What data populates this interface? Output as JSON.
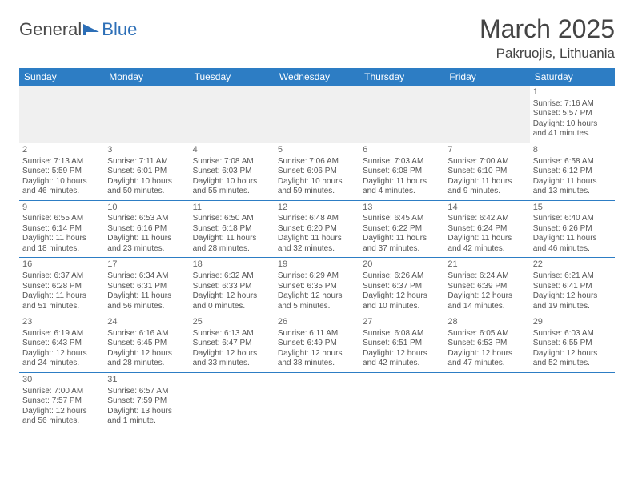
{
  "logo": {
    "text1": "General",
    "text2": "Blue"
  },
  "title": "March 2025",
  "location": "Pakruojis, Lithuania",
  "colors": {
    "header_bg": "#2d7dc4",
    "header_text": "#ffffff",
    "rule": "#2d7dc4",
    "text": "#555555",
    "logo_blue": "#2d6fb7"
  },
  "typography": {
    "title_fontsize": 32,
    "location_fontsize": 17,
    "dayheader_fontsize": 12,
    "cell_fontsize": 10
  },
  "day_headers": [
    "Sunday",
    "Monday",
    "Tuesday",
    "Wednesday",
    "Thursday",
    "Friday",
    "Saturday"
  ],
  "weeks": [
    [
      null,
      null,
      null,
      null,
      null,
      null,
      {
        "n": "1",
        "sunrise": "Sunrise: 7:16 AM",
        "sunset": "Sunset: 5:57 PM",
        "daylight": "Daylight: 10 hours and 41 minutes."
      }
    ],
    [
      {
        "n": "2",
        "sunrise": "Sunrise: 7:13 AM",
        "sunset": "Sunset: 5:59 PM",
        "daylight": "Daylight: 10 hours and 46 minutes."
      },
      {
        "n": "3",
        "sunrise": "Sunrise: 7:11 AM",
        "sunset": "Sunset: 6:01 PM",
        "daylight": "Daylight: 10 hours and 50 minutes."
      },
      {
        "n": "4",
        "sunrise": "Sunrise: 7:08 AM",
        "sunset": "Sunset: 6:03 PM",
        "daylight": "Daylight: 10 hours and 55 minutes."
      },
      {
        "n": "5",
        "sunrise": "Sunrise: 7:06 AM",
        "sunset": "Sunset: 6:06 PM",
        "daylight": "Daylight: 10 hours and 59 minutes."
      },
      {
        "n": "6",
        "sunrise": "Sunrise: 7:03 AM",
        "sunset": "Sunset: 6:08 PM",
        "daylight": "Daylight: 11 hours and 4 minutes."
      },
      {
        "n": "7",
        "sunrise": "Sunrise: 7:00 AM",
        "sunset": "Sunset: 6:10 PM",
        "daylight": "Daylight: 11 hours and 9 minutes."
      },
      {
        "n": "8",
        "sunrise": "Sunrise: 6:58 AM",
        "sunset": "Sunset: 6:12 PM",
        "daylight": "Daylight: 11 hours and 13 minutes."
      }
    ],
    [
      {
        "n": "9",
        "sunrise": "Sunrise: 6:55 AM",
        "sunset": "Sunset: 6:14 PM",
        "daylight": "Daylight: 11 hours and 18 minutes."
      },
      {
        "n": "10",
        "sunrise": "Sunrise: 6:53 AM",
        "sunset": "Sunset: 6:16 PM",
        "daylight": "Daylight: 11 hours and 23 minutes."
      },
      {
        "n": "11",
        "sunrise": "Sunrise: 6:50 AM",
        "sunset": "Sunset: 6:18 PM",
        "daylight": "Daylight: 11 hours and 28 minutes."
      },
      {
        "n": "12",
        "sunrise": "Sunrise: 6:48 AM",
        "sunset": "Sunset: 6:20 PM",
        "daylight": "Daylight: 11 hours and 32 minutes."
      },
      {
        "n": "13",
        "sunrise": "Sunrise: 6:45 AM",
        "sunset": "Sunset: 6:22 PM",
        "daylight": "Daylight: 11 hours and 37 minutes."
      },
      {
        "n": "14",
        "sunrise": "Sunrise: 6:42 AM",
        "sunset": "Sunset: 6:24 PM",
        "daylight": "Daylight: 11 hours and 42 minutes."
      },
      {
        "n": "15",
        "sunrise": "Sunrise: 6:40 AM",
        "sunset": "Sunset: 6:26 PM",
        "daylight": "Daylight: 11 hours and 46 minutes."
      }
    ],
    [
      {
        "n": "16",
        "sunrise": "Sunrise: 6:37 AM",
        "sunset": "Sunset: 6:28 PM",
        "daylight": "Daylight: 11 hours and 51 minutes."
      },
      {
        "n": "17",
        "sunrise": "Sunrise: 6:34 AM",
        "sunset": "Sunset: 6:31 PM",
        "daylight": "Daylight: 11 hours and 56 minutes."
      },
      {
        "n": "18",
        "sunrise": "Sunrise: 6:32 AM",
        "sunset": "Sunset: 6:33 PM",
        "daylight": "Daylight: 12 hours and 0 minutes."
      },
      {
        "n": "19",
        "sunrise": "Sunrise: 6:29 AM",
        "sunset": "Sunset: 6:35 PM",
        "daylight": "Daylight: 12 hours and 5 minutes."
      },
      {
        "n": "20",
        "sunrise": "Sunrise: 6:26 AM",
        "sunset": "Sunset: 6:37 PM",
        "daylight": "Daylight: 12 hours and 10 minutes."
      },
      {
        "n": "21",
        "sunrise": "Sunrise: 6:24 AM",
        "sunset": "Sunset: 6:39 PM",
        "daylight": "Daylight: 12 hours and 14 minutes."
      },
      {
        "n": "22",
        "sunrise": "Sunrise: 6:21 AM",
        "sunset": "Sunset: 6:41 PM",
        "daylight": "Daylight: 12 hours and 19 minutes."
      }
    ],
    [
      {
        "n": "23",
        "sunrise": "Sunrise: 6:19 AM",
        "sunset": "Sunset: 6:43 PM",
        "daylight": "Daylight: 12 hours and 24 minutes."
      },
      {
        "n": "24",
        "sunrise": "Sunrise: 6:16 AM",
        "sunset": "Sunset: 6:45 PM",
        "daylight": "Daylight: 12 hours and 28 minutes."
      },
      {
        "n": "25",
        "sunrise": "Sunrise: 6:13 AM",
        "sunset": "Sunset: 6:47 PM",
        "daylight": "Daylight: 12 hours and 33 minutes."
      },
      {
        "n": "26",
        "sunrise": "Sunrise: 6:11 AM",
        "sunset": "Sunset: 6:49 PM",
        "daylight": "Daylight: 12 hours and 38 minutes."
      },
      {
        "n": "27",
        "sunrise": "Sunrise: 6:08 AM",
        "sunset": "Sunset: 6:51 PM",
        "daylight": "Daylight: 12 hours and 42 minutes."
      },
      {
        "n": "28",
        "sunrise": "Sunrise: 6:05 AM",
        "sunset": "Sunset: 6:53 PM",
        "daylight": "Daylight: 12 hours and 47 minutes."
      },
      {
        "n": "29",
        "sunrise": "Sunrise: 6:03 AM",
        "sunset": "Sunset: 6:55 PM",
        "daylight": "Daylight: 12 hours and 52 minutes."
      }
    ],
    [
      {
        "n": "30",
        "sunrise": "Sunrise: 7:00 AM",
        "sunset": "Sunset: 7:57 PM",
        "daylight": "Daylight: 12 hours and 56 minutes."
      },
      {
        "n": "31",
        "sunrise": "Sunrise: 6:57 AM",
        "sunset": "Sunset: 7:59 PM",
        "daylight": "Daylight: 13 hours and 1 minute."
      },
      null,
      null,
      null,
      null,
      null
    ]
  ]
}
